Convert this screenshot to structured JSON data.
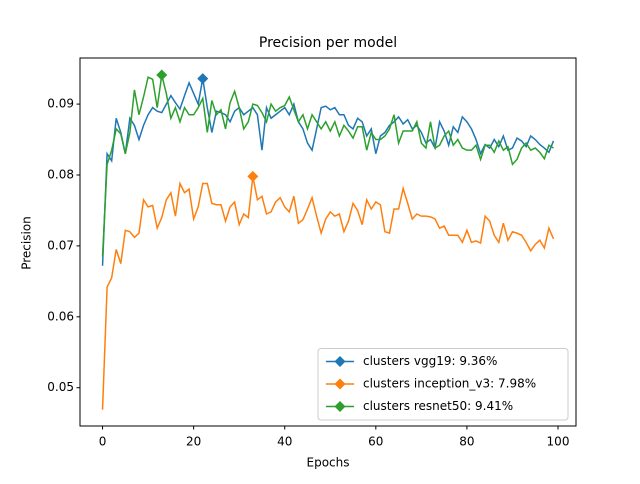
{
  "chart_data": {
    "type": "line",
    "title": "Precision per model",
    "xlabel": "Epochs",
    "ylabel": "Precision",
    "x": [
      0,
      1,
      2,
      3,
      4,
      5,
      6,
      7,
      8,
      9,
      10,
      11,
      12,
      13,
      14,
      15,
      16,
      17,
      18,
      19,
      20,
      21,
      22,
      23,
      24,
      25,
      26,
      27,
      28,
      29,
      30,
      31,
      32,
      33,
      34,
      35,
      36,
      37,
      38,
      39,
      40,
      41,
      42,
      43,
      44,
      45,
      46,
      47,
      48,
      49,
      50,
      51,
      52,
      53,
      54,
      55,
      56,
      57,
      58,
      59,
      60,
      61,
      62,
      63,
      64,
      65,
      66,
      67,
      68,
      69,
      70,
      71,
      72,
      73,
      74,
      75,
      76,
      77,
      78,
      79,
      80,
      81,
      82,
      83,
      84,
      85,
      86,
      87,
      88,
      89,
      90,
      91,
      92,
      93,
      94,
      95,
      96,
      97,
      98,
      99
    ],
    "xlim": [
      -4.95,
      103.95
    ],
    "xticks": [
      0,
      20,
      40,
      60,
      80,
      100
    ],
    "ylim": [
      0.0446,
      0.0965
    ],
    "yticks": [
      0.05,
      0.06,
      0.07,
      0.08,
      0.09
    ],
    "legend": "lower right",
    "series": [
      {
        "name": "clusters vgg19: 9.36%",
        "color": "#1f77b4",
        "marker": {
          "x": 22,
          "y": 0.0936
        },
        "values": [
          0.0672,
          0.083,
          0.082,
          0.088,
          0.086,
          0.083,
          0.088,
          0.087,
          0.085,
          0.087,
          0.0885,
          0.0895,
          0.089,
          0.0888,
          0.09,
          0.0912,
          0.0902,
          0.0893,
          0.0912,
          0.093,
          0.0915,
          0.09,
          0.0936,
          0.0895,
          0.086,
          0.089,
          0.0888,
          0.0885,
          0.0875,
          0.089,
          0.0895,
          0.0885,
          0.089,
          0.0895,
          0.0885,
          0.0835,
          0.0895,
          0.088,
          0.0885,
          0.089,
          0.0895,
          0.0885,
          0.09,
          0.0875,
          0.0865,
          0.0845,
          0.0835,
          0.0865,
          0.0895,
          0.0897,
          0.0892,
          0.0895,
          0.0885,
          0.0885,
          0.087,
          0.0865,
          0.088,
          0.0875,
          0.0855,
          0.0865,
          0.083,
          0.0855,
          0.086,
          0.087,
          0.0875,
          0.0882,
          0.0872,
          0.0878,
          0.0865,
          0.087,
          0.086,
          0.0845,
          0.085,
          0.0838,
          0.0875,
          0.0862,
          0.0842,
          0.0868,
          0.086,
          0.0882,
          0.0875,
          0.0865,
          0.085,
          0.083,
          0.0843,
          0.0838,
          0.085,
          0.084,
          0.0855,
          0.0835,
          0.0838,
          0.0852,
          0.0848,
          0.084,
          0.0855,
          0.085,
          0.0843,
          0.0838,
          0.0832,
          0.0848
        ]
      },
      {
        "name": "clusters inception_v3: 7.98%",
        "color": "#ff7f0e",
        "marker": {
          "x": 33,
          "y": 0.0798
        },
        "values": [
          0.0469,
          0.0642,
          0.0655,
          0.0695,
          0.0675,
          0.0722,
          0.072,
          0.0712,
          0.0718,
          0.0765,
          0.0755,
          0.0757,
          0.0725,
          0.074,
          0.0765,
          0.0775,
          0.0742,
          0.0788,
          0.0775,
          0.078,
          0.0738,
          0.0755,
          0.0788,
          0.0788,
          0.076,
          0.0758,
          0.0758,
          0.0735,
          0.0755,
          0.0762,
          0.073,
          0.0745,
          0.074,
          0.0798,
          0.0765,
          0.077,
          0.0745,
          0.0748,
          0.0762,
          0.0768,
          0.0755,
          0.0748,
          0.077,
          0.0732,
          0.0737,
          0.0752,
          0.0768,
          0.0742,
          0.0718,
          0.0738,
          0.0748,
          0.0742,
          0.0745,
          0.072,
          0.0735,
          0.076,
          0.075,
          0.073,
          0.0765,
          0.0752,
          0.0762,
          0.0758,
          0.072,
          0.0718,
          0.0752,
          0.0752,
          0.0781,
          0.076,
          0.0738,
          0.0745,
          0.0742,
          0.0742,
          0.0741,
          0.0738,
          0.0725,
          0.0728,
          0.0715,
          0.0715,
          0.0715,
          0.0705,
          0.0722,
          0.0705,
          0.0707,
          0.0704,
          0.0742,
          0.0735,
          0.0715,
          0.0705,
          0.0732,
          0.0708,
          0.072,
          0.0718,
          0.0715,
          0.0705,
          0.0693,
          0.0702,
          0.0708,
          0.0697,
          0.0725,
          0.071
        ]
      },
      {
        "name": "clusters resnet50: 9.41%",
        "color": "#2ca02c",
        "marker": {
          "x": 13,
          "y": 0.0941
        },
        "values": [
          0.0685,
          0.0815,
          0.0835,
          0.0865,
          0.0858,
          0.083,
          0.086,
          0.092,
          0.0885,
          0.091,
          0.0938,
          0.0935,
          0.0895,
          0.0941,
          0.0915,
          0.088,
          0.0895,
          0.0875,
          0.0895,
          0.0885,
          0.0885,
          0.0895,
          0.0908,
          0.086,
          0.0905,
          0.0885,
          0.0892,
          0.0865,
          0.0902,
          0.0918,
          0.0895,
          0.0865,
          0.0875,
          0.09,
          0.0898,
          0.0888,
          0.0875,
          0.09,
          0.089,
          0.0895,
          0.0898,
          0.091,
          0.0892,
          0.0875,
          0.0885,
          0.0865,
          0.0885,
          0.0875,
          0.0865,
          0.0875,
          0.0862,
          0.0875,
          0.0855,
          0.087,
          0.0862,
          0.0852,
          0.0868,
          0.0868,
          0.0835,
          0.086,
          0.085,
          0.085,
          0.0855,
          0.0865,
          0.0885,
          0.0845,
          0.0862,
          0.0862,
          0.0862,
          0.0875,
          0.0845,
          0.0838,
          0.0875,
          0.0838,
          0.0842,
          0.0855,
          0.0862,
          0.0842,
          0.085,
          0.0838,
          0.0835,
          0.0835,
          0.0842,
          0.0822,
          0.0842,
          0.0842,
          0.0832,
          0.0848,
          0.0835,
          0.084,
          0.0815,
          0.0822,
          0.0838,
          0.0845,
          0.0835,
          0.0838,
          0.0832,
          0.0823,
          0.0842,
          0.0838
        ]
      }
    ]
  }
}
